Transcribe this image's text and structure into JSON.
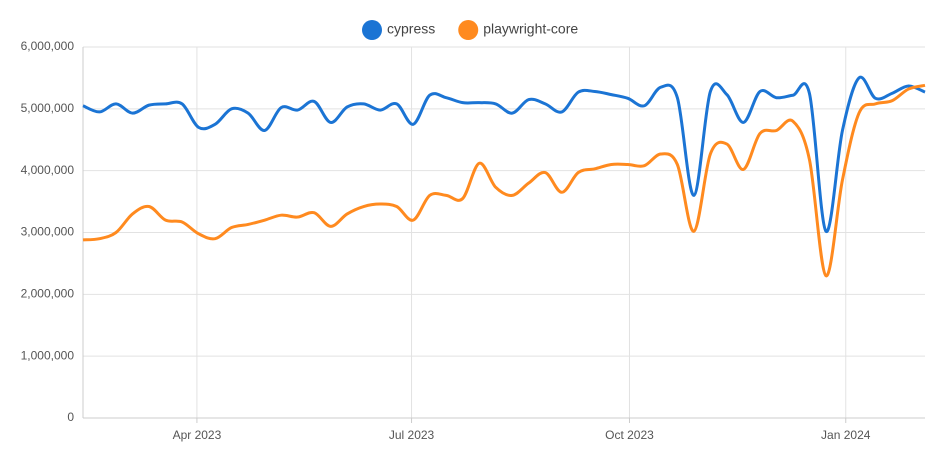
{
  "chart_data": {
    "type": "line",
    "xlim": [
      0,
      51
    ],
    "xticks": [
      {
        "value": 6.9,
        "label": "Apr 2023"
      },
      {
        "value": 19.9,
        "label": "Jul 2023"
      },
      {
        "value": 33.1,
        "label": "Oct 2023"
      },
      {
        "value": 46.2,
        "label": "Jan 2024"
      }
    ],
    "ylim": [
      0,
      6000000
    ],
    "yticks": [
      0,
      {
        "value": 1000000,
        "label": "1,000,000"
      },
      {
        "value": 2000000,
        "label": "2,000,000"
      },
      {
        "value": 3000000,
        "label": "3,000,000"
      },
      {
        "value": 4000000,
        "label": "4,000,000"
      },
      {
        "value": 5000000,
        "label": "5,000,000"
      },
      {
        "value": 6000000,
        "label": "6,000,000"
      }
    ],
    "grid": true,
    "legend": "top",
    "series": [
      {
        "name": "cypress",
        "color": "#1b74d4",
        "values": [
          5050000,
          4950000,
          5080000,
          4930000,
          5060000,
          5080000,
          5080000,
          4700000,
          4750000,
          5000000,
          4930000,
          4650000,
          5020000,
          4980000,
          5120000,
          4780000,
          5030000,
          5080000,
          4980000,
          5080000,
          4750000,
          5220000,
          5180000,
          5100000,
          5100000,
          5080000,
          4930000,
          5150000,
          5080000,
          4950000,
          5270000,
          5280000,
          5230000,
          5170000,
          5050000,
          5350000,
          5180000,
          3600000,
          5280000,
          5230000,
          4780000,
          5280000,
          5180000,
          5220000,
          5250000,
          3020000,
          4650000,
          5500000,
          5170000,
          5250000,
          5370000,
          5270000
        ]
      },
      {
        "name": "playwright-core",
        "color": "#ff8a1f",
        "values": [
          2880000,
          2900000,
          3000000,
          3300000,
          3420000,
          3200000,
          3170000,
          2980000,
          2900000,
          3080000,
          3130000,
          3200000,
          3280000,
          3250000,
          3320000,
          3100000,
          3300000,
          3420000,
          3460000,
          3420000,
          3200000,
          3600000,
          3600000,
          3550000,
          4120000,
          3730000,
          3600000,
          3800000,
          3970000,
          3650000,
          3970000,
          4030000,
          4100000,
          4100000,
          4080000,
          4270000,
          4100000,
          3020000,
          4270000,
          4430000,
          4020000,
          4600000,
          4650000,
          4800000,
          4180000,
          2300000,
          3850000,
          4930000,
          5080000,
          5130000,
          5320000,
          5380000
        ]
      }
    ]
  }
}
